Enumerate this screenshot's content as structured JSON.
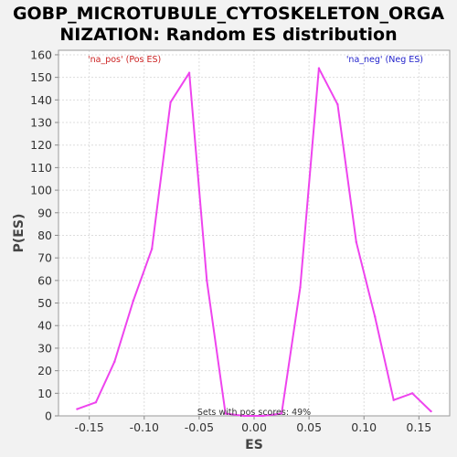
{
  "chart_data": {
    "type": "line",
    "title_lines": [
      "GOBP_MICROTUBULE_CYTOSKELETON_ORGA",
      "NIZATION: Random ES distribution"
    ],
    "xlabel": "ES",
    "ylabel": "P(ES)",
    "xlim": [
      -0.178,
      0.178
    ],
    "ylim": [
      0,
      162
    ],
    "xticks": [
      -0.15,
      -0.1,
      -0.05,
      0.0,
      0.05,
      0.1,
      0.15
    ],
    "xtick_labels": [
      "-0.15",
      "-0.10",
      "-0.05",
      "0.00",
      "0.05",
      "0.10",
      "0.15"
    ],
    "yticks": [
      0,
      10,
      20,
      30,
      40,
      50,
      60,
      70,
      80,
      90,
      100,
      110,
      120,
      130,
      140,
      150,
      160
    ],
    "ytick_labels": [
      "0",
      "10",
      "20",
      "30",
      "40",
      "50",
      "60",
      "70",
      "80",
      "90",
      "100",
      "110",
      "120",
      "130",
      "140",
      "150",
      "160"
    ],
    "grid": true,
    "series": [
      {
        "color": "#ee44ee",
        "x": [
          -0.161,
          -0.144,
          -0.127,
          -0.11,
          -0.093,
          -0.076,
          -0.059,
          -0.043,
          -0.026,
          -0.009,
          0.008,
          0.025,
          0.042,
          0.059,
          0.076,
          0.093,
          0.11,
          0.127,
          0.144,
          0.161
        ],
        "y": [
          3,
          6,
          24,
          51,
          74,
          139,
          152,
          60,
          1,
          0,
          0,
          1,
          57,
          154,
          138,
          77,
          44,
          7,
          10,
          2
        ]
      }
    ],
    "annotations": {
      "pos_label": "'na_pos' (Pos ES)",
      "neg_label": "'na_neg' (Neg ES)",
      "pos_color": "#cc2222",
      "neg_color": "#2222cc",
      "sets_note": "Sets with pos scores: 49%"
    }
  }
}
